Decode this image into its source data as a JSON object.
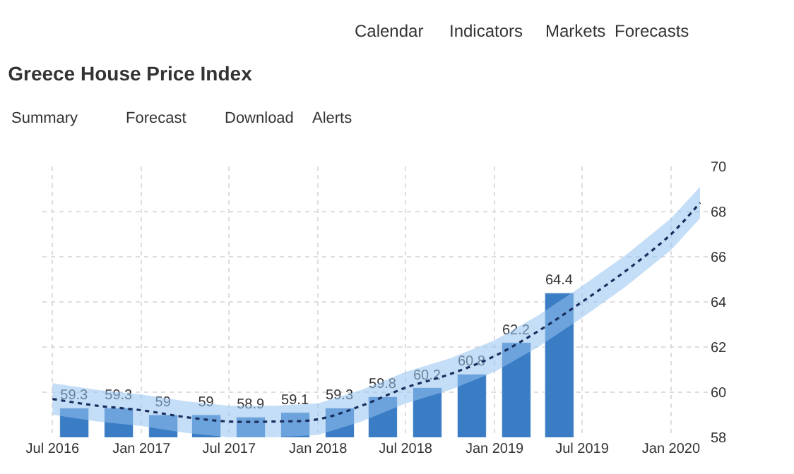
{
  "chart_data": {
    "type": "bar",
    "title": "Greece House Price Index",
    "annotations": [
      "Calendar",
      "Indicators",
      "Markets",
      "Forecasts",
      "Summary",
      "Forecast",
      "Download",
      "Alerts"
    ],
    "x": [
      "2016-08-15",
      "2016-11-15",
      "2017-02-15",
      "2017-05-15",
      "2017-08-15",
      "2017-11-15",
      "2018-02-15",
      "2018-05-15",
      "2018-08-15",
      "2018-11-15",
      "2019-02-15",
      "2019-05-15"
    ],
    "series": [
      {
        "color": "#3b7dc4",
        "values": [
          59.3,
          59.3,
          59,
          59,
          58.9,
          59.1,
          59.3,
          59.8,
          60.2,
          60.8,
          62.2,
          64.4
        ],
        "value_labels": [
          "59.3",
          "59.3",
          "59",
          "59",
          "58.9",
          "59.1",
          "59.3",
          "59.8",
          "60.2",
          "60.8",
          "62.2",
          "64.4"
        ]
      },
      {
        "type": "line",
        "color": "#1b2f5e",
        "line_style": "dotted",
        "marker": "none",
        "x": [
          "2016-07-01",
          "2016-10-01",
          "2017-01-01",
          "2017-04-01",
          "2017-07-01",
          "2017-10-01",
          "2018-01-01",
          "2018-04-01",
          "2018-07-01",
          "2018-10-01",
          "2019-01-01",
          "2019-04-01",
          "2019-07-01",
          "2019-10-01",
          "2020-01-01",
          "2020-03-01"
        ],
        "values": [
          59.7,
          59.4,
          59.2,
          58.9,
          58.7,
          58.7,
          58.8,
          59.4,
          60.2,
          60.8,
          61.6,
          62.7,
          64.0,
          65.4,
          67.0,
          68.4
        ],
        "lower": [
          59.0,
          58.7,
          58.5,
          58.2,
          58.0,
          58.0,
          58.1,
          58.7,
          59.5,
          60.1,
          60.9,
          62.0,
          63.3,
          64.7,
          66.3,
          67.7
        ],
        "upper": [
          60.4,
          60.1,
          59.9,
          59.6,
          59.4,
          59.4,
          59.5,
          60.1,
          60.9,
          61.5,
          62.3,
          63.4,
          64.7,
          66.1,
          67.7,
          69.1
        ]
      }
    ],
    "xlim": [
      "2016-06-10",
      "2020-03-20"
    ],
    "xticks": [
      {
        "value": "2016-07-01",
        "label": "Jul 2016"
      },
      {
        "value": "2017-01-01",
        "label": "Jan 2017"
      },
      {
        "value": "2017-07-01",
        "label": "Jul 2017"
      },
      {
        "value": "2018-01-01",
        "label": "Jan 2018"
      },
      {
        "value": "2018-07-01",
        "label": "Jul 2018"
      },
      {
        "value": "2019-01-01",
        "label": "Jan 2019"
      },
      {
        "value": "2019-07-01",
        "label": "Jul 2019"
      },
      {
        "value": "2020-01-01",
        "label": "Jan 2020"
      }
    ],
    "ylim": [
      58,
      70
    ],
    "yticks": [
      58,
      60,
      62,
      64,
      66,
      68,
      70
    ],
    "grid": true
  }
}
